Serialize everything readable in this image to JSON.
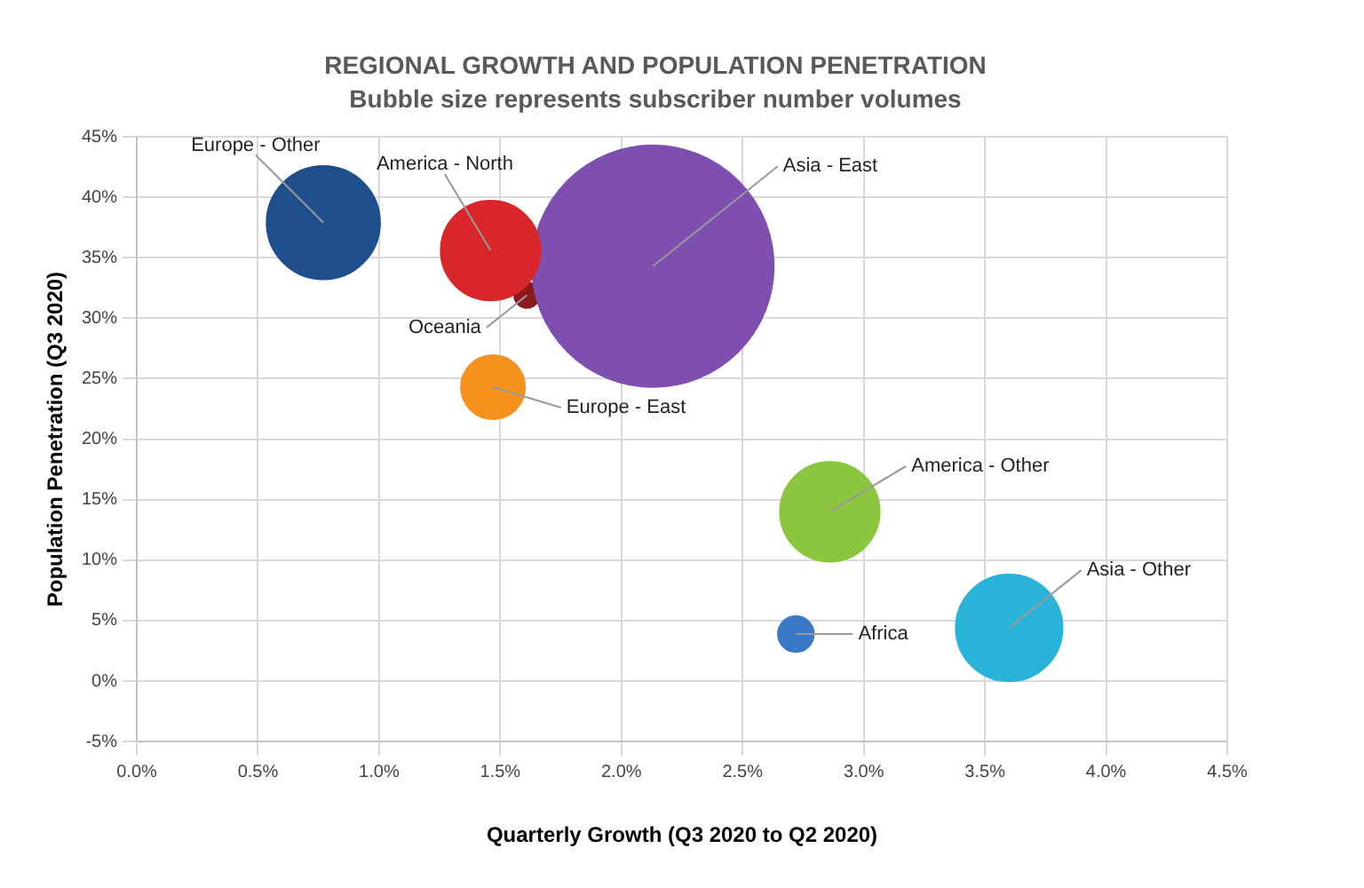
{
  "chart_data": {
    "type": "bubble",
    "title": "REGIONAL GROWTH AND POPULATION PENETRATION",
    "subtitle": "Bubble size represents subscriber number volumes",
    "xlabel": "Quarterly Growth (Q3 2020 to Q2 2020)",
    "ylabel": "Population Penetration (Q3 2020)",
    "series": [
      {
        "name": "Europe - Other",
        "color": "#1f4e8c",
        "x": [
          0.77
        ],
        "values": [
          37.9
        ],
        "sizes": [
          0.22
        ]
      },
      {
        "name": "America - North",
        "color": "#d9262b",
        "x": [
          1.46
        ],
        "values": [
          35.6
        ],
        "sizes": [
          0.17
        ]
      },
      {
        "name": "Asia - East",
        "color": "#7e4fb0",
        "x": [
          2.13
        ],
        "values": [
          34.3
        ],
        "sizes": [
          1
        ]
      },
      {
        "name": "Oceania",
        "color": "#8b1a1a",
        "x": [
          1.61
        ],
        "values": [
          31.9
        ],
        "sizes": [
          0.011
        ]
      },
      {
        "name": "Europe - East",
        "color": "#f5921e",
        "x": [
          1.47
        ],
        "values": [
          24.3
        ],
        "sizes": [
          0.07
        ]
      },
      {
        "name": "America - Other",
        "color": "#8cc63f",
        "x": [
          2.86
        ],
        "values": [
          14.0
        ],
        "sizes": [
          0.17
        ]
      },
      {
        "name": "Africa",
        "color": "#3a78c8",
        "x": [
          2.72
        ],
        "values": [
          3.9
        ],
        "sizes": [
          0.022
        ]
      },
      {
        "name": "Asia - Other",
        "color": "#29b3d9",
        "x": [
          3.6
        ],
        "values": [
          4.4
        ],
        "sizes": [
          0.195
        ]
      }
    ],
    "xlim": [
      0,
      4.5
    ],
    "xticks": [
      {
        "value": 0,
        "label": "0.0%"
      },
      {
        "value": 0.5,
        "label": "0.5%"
      },
      {
        "value": 1,
        "label": "1.0%"
      },
      {
        "value": 1.5,
        "label": "1.5%"
      },
      {
        "value": 2,
        "label": "2.0%"
      },
      {
        "value": 2.5,
        "label": "2.5%"
      },
      {
        "value": 3,
        "label": "3.0%"
      },
      {
        "value": 3.5,
        "label": "3.5%"
      },
      {
        "value": 4,
        "label": "4.0%"
      },
      {
        "value": 4.5,
        "label": "4.5%"
      }
    ],
    "ylim": [
      -5,
      45
    ],
    "yticks": [
      {
        "value": -5,
        "label": "-5%"
      },
      {
        "value": 0,
        "label": "0%"
      },
      {
        "value": 5,
        "label": "5%"
      },
      {
        "value": 10,
        "label": "10%"
      },
      {
        "value": 15,
        "label": "15%"
      },
      {
        "value": 20,
        "label": "20%"
      },
      {
        "value": 25,
        "label": "25%"
      },
      {
        "value": 30,
        "label": "30%"
      },
      {
        "value": 35,
        "label": "35%"
      },
      {
        "value": 40,
        "label": "40%"
      },
      {
        "value": 45,
        "label": "45%"
      }
    ],
    "grid": true,
    "legend": false
  }
}
